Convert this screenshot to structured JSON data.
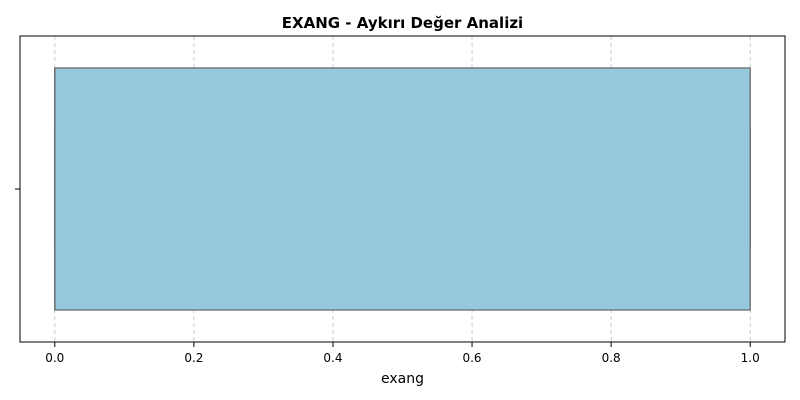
{
  "chart_data": {
    "type": "boxplot",
    "orientation": "horizontal",
    "title": "EXANG - Aykırı Değer Analizi",
    "xlabel": "exang",
    "ylabel": "",
    "xlim": [
      -0.05,
      1.05
    ],
    "xticks": [
      0.0,
      0.2,
      0.4,
      0.6,
      0.8,
      1.0
    ],
    "xtick_labels": [
      "0.0",
      "0.2",
      "0.4",
      "0.6",
      "0.8",
      "1.0"
    ],
    "grid": "x-dashed",
    "box": {
      "min": 0.0,
      "q1": 0.0,
      "median": 0.0,
      "q3": 1.0,
      "max": 1.0
    },
    "colors": {
      "box_fill": "#95c8dd",
      "box_edge": "#6b6b6b",
      "grid": "#cccccc",
      "axis": "#000000"
    }
  }
}
